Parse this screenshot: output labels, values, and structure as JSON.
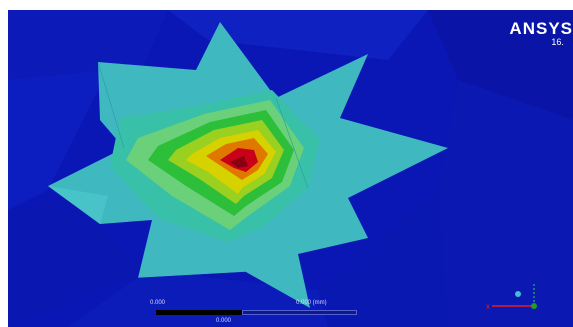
{
  "app": {
    "brand_name": "ANSYS",
    "brand_version": "16."
  },
  "scale_bar": {
    "left_label": "0.000",
    "right_label": "0.000 (mm)",
    "mid_label": "0.000"
  },
  "colors": {
    "background": "#0a17b4",
    "contour_cyan": "#3fb8c0",
    "contour_green": "#2dbf3a",
    "contour_yellow": "#d6d200",
    "contour_orange": "#e07800",
    "contour_red": "#c80018"
  }
}
